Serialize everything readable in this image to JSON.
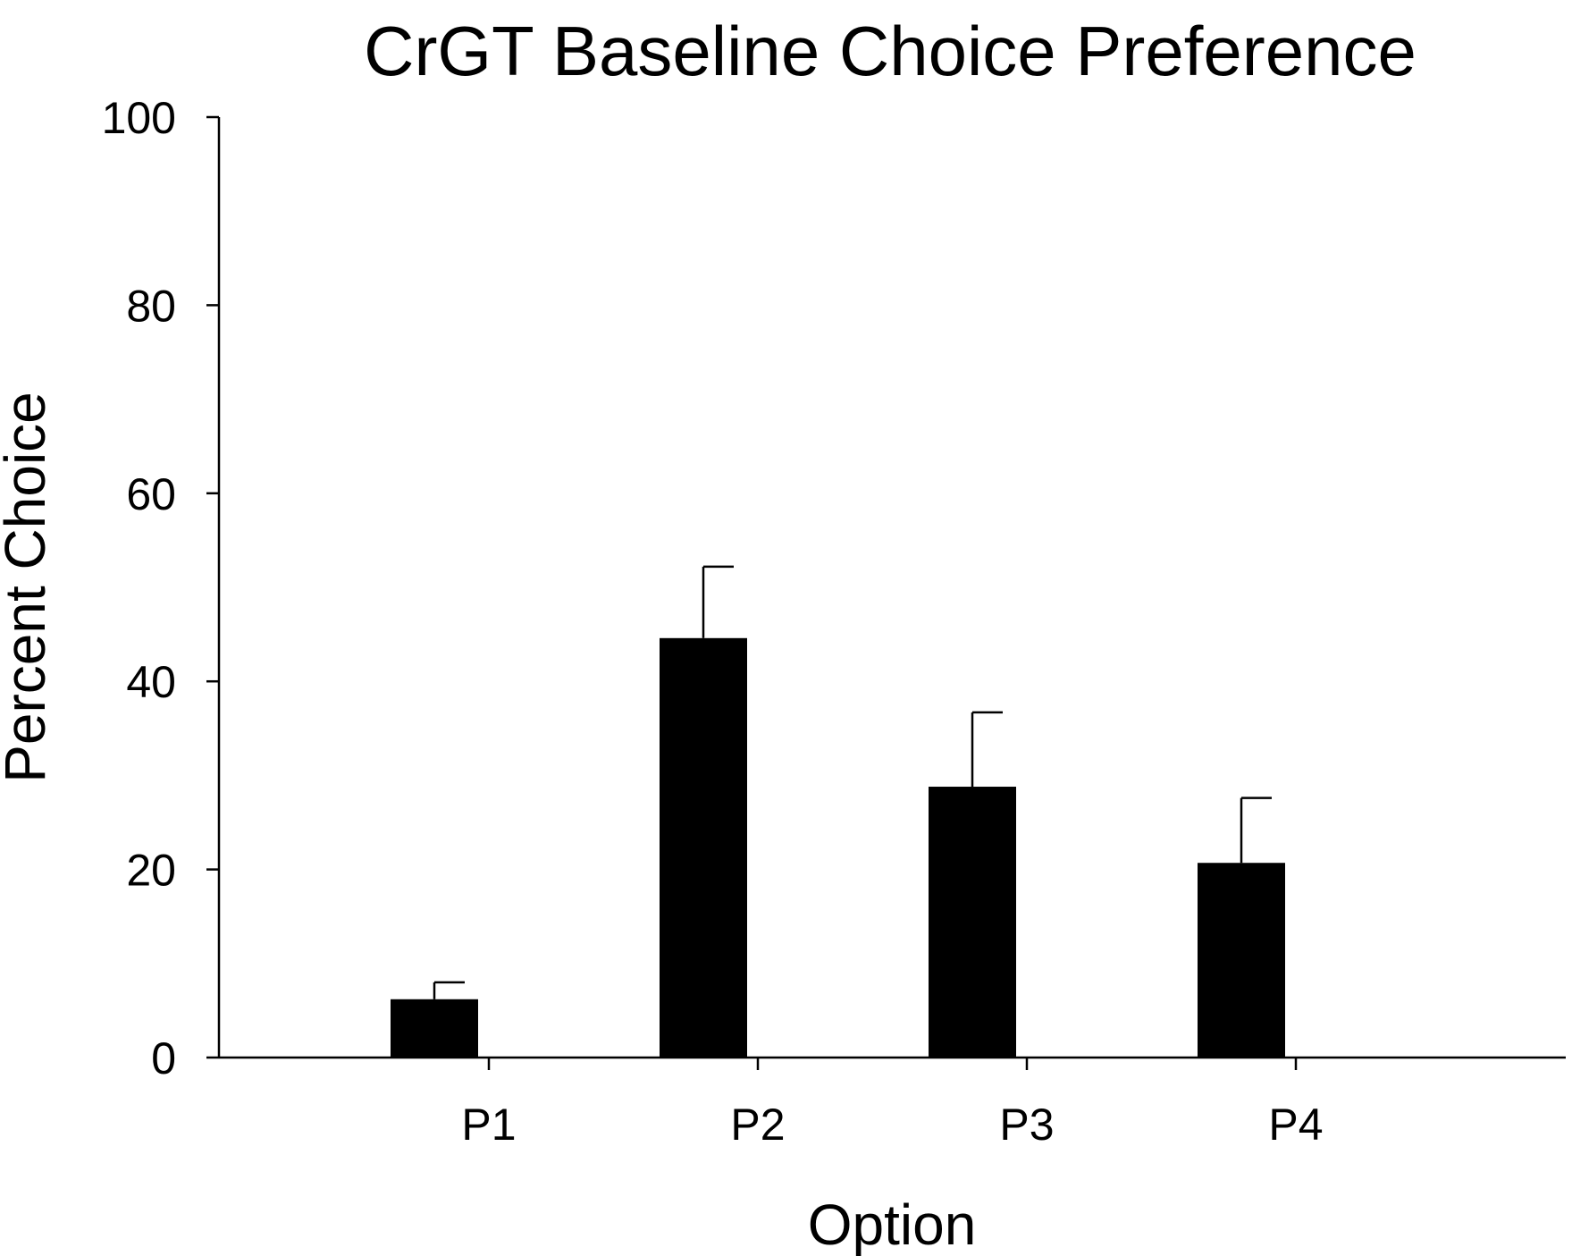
{
  "chart_data": {
    "type": "bar",
    "title": "CrGT Baseline Choice Preference",
    "xlabel": "Option",
    "ylabel": "Percent Choice",
    "categories": [
      "P1",
      "P2",
      "P3",
      "P4"
    ],
    "values": [
      6.2,
      44.6,
      28.8,
      20.7
    ],
    "error_upper": [
      1.8,
      7.6,
      7.9,
      6.9
    ],
    "ylim": [
      0,
      100
    ],
    "yticks": [
      0,
      20,
      40,
      60,
      80,
      100
    ],
    "ytick_labels": [
      "0",
      "20",
      "40",
      "60",
      "80",
      "100"
    ],
    "grid": false,
    "legend": "none",
    "colors": {
      "bar": "#000000",
      "axis": "#000000",
      "background": "#ffffff"
    }
  }
}
